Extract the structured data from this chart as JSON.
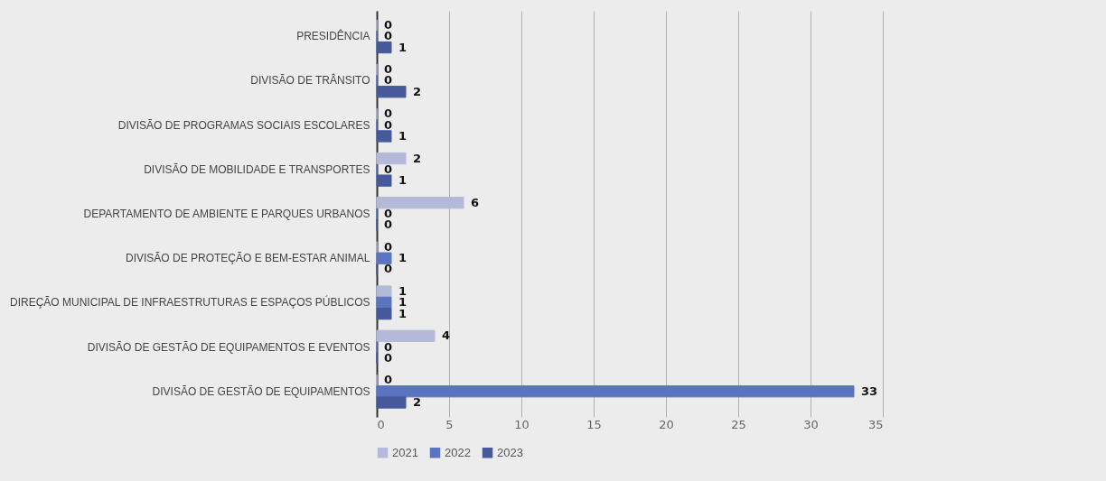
{
  "chart_data": {
    "type": "bar",
    "orientation": "horizontal",
    "categories": [
      "PRESIDÊNCIA",
      "DIVISÃO DE TRÂNSITO",
      "DIVISÃO DE PROGRAMAS SOCIAIS ESCOLARES",
      "DIVISÃO DE MOBILIDADE E TRANSPORTES",
      "DEPARTAMENTO DE AMBIENTE E PARQUES URBANOS",
      "DIVISÃO DE PROTEÇÃO E BEM-ESTAR ANIMAL",
      "DIREÇÃO MUNICIPAL DE INFRAESTRUTURAS E ESPAÇOS PÚBLICOS",
      "DIVISÃO DE GESTÃO DE EQUIPAMENTOS E EVENTOS",
      "DIVISÃO DE GESTÃO DE EQUIPAMENTOS"
    ],
    "series": [
      {
        "name": "2021",
        "color": "#b4b9d9",
        "values": [
          0,
          0,
          0,
          2,
          6,
          0,
          1,
          4,
          0
        ]
      },
      {
        "name": "2022",
        "color": "#5b74c2",
        "values": [
          0,
          0,
          0,
          0,
          0,
          1,
          1,
          0,
          33
        ]
      },
      {
        "name": "2023",
        "color": "#45599b",
        "values": [
          1,
          2,
          1,
          1,
          0,
          0,
          1,
          0,
          2
        ]
      }
    ],
    "xlim": [
      0,
      35
    ],
    "xticks": [
      0,
      5,
      10,
      15,
      20,
      25,
      30,
      35
    ],
    "grid": "x",
    "legend": "bottom",
    "data_labels": true
  }
}
